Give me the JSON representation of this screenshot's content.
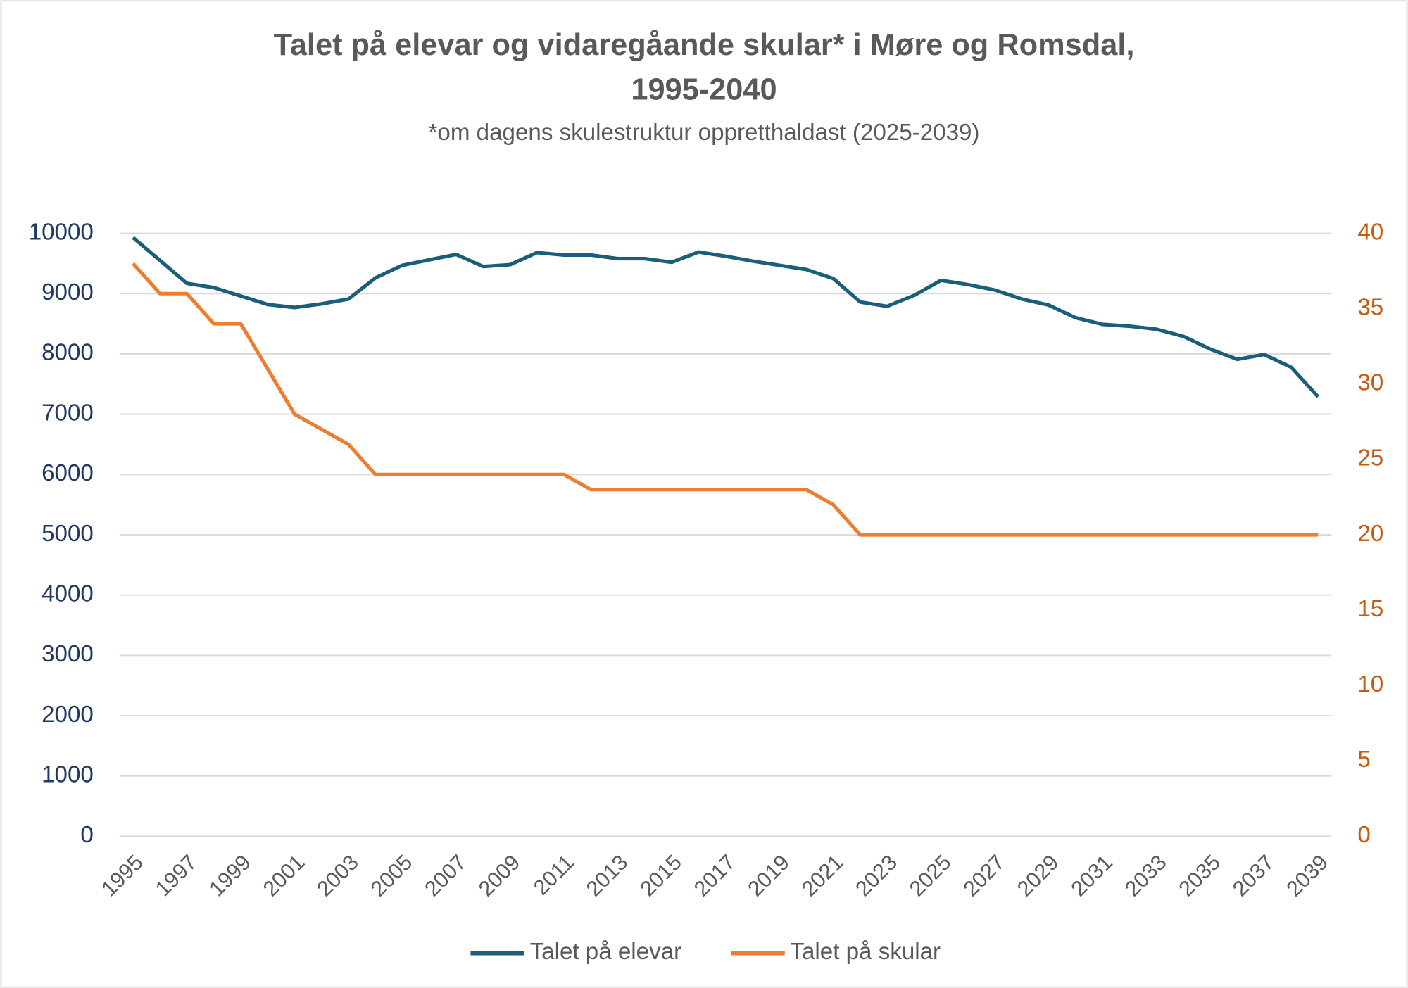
{
  "chart_data": {
    "type": "line",
    "title": [
      "Talet på elevar og vidaregåande skular* i Møre og Romsdal,",
      "1995-2040"
    ],
    "subtitle": "*om dagens skulestruktur oppretthaldast (2025-2039)",
    "categories": [
      "1995",
      null,
      "1997",
      null,
      "1999",
      null,
      "2001",
      null,
      "2003",
      null,
      "2005",
      null,
      "2007",
      null,
      "2009",
      null,
      "2011",
      null,
      "2013",
      null,
      "2015",
      null,
      "2017",
      null,
      "2019",
      null,
      "2021",
      null,
      "2023",
      null,
      "2025",
      null,
      "2027",
      null,
      "2029",
      null,
      "2031",
      null,
      "2033",
      null,
      "2035",
      null,
      "2037",
      null,
      "2039"
    ],
    "series": [
      {
        "name": "Talet på elevar",
        "color": "#1b5e7b",
        "values": [
          9930,
          9550,
          9170,
          9100,
          8960,
          8820,
          8770,
          8830,
          8910,
          9260,
          9470,
          9560,
          9650,
          9450,
          9480,
          9680,
          9640,
          9640,
          9580,
          9580,
          9520,
          9690,
          9620,
          9540,
          9470,
          9400,
          9250,
          8860,
          8790,
          8970,
          9220,
          9150,
          9060,
          8910,
          8810,
          8600,
          8490,
          8460,
          8410,
          8290,
          8080,
          7910,
          7990,
          7780,
          7290
        ]
      },
      {
        "name": "Talet på skular",
        "color": "#ed7d31",
        "axis": "y2",
        "values": [
          38,
          36,
          36,
          34,
          34,
          31,
          28,
          27,
          26,
          24,
          24,
          24,
          24,
          24,
          24,
          24,
          24,
          23,
          23,
          23,
          23,
          23,
          23,
          23,
          23,
          23,
          22,
          20,
          20,
          20,
          20,
          20,
          20,
          20,
          20,
          20,
          20,
          20,
          20,
          20,
          20,
          20,
          20,
          20,
          20
        ]
      }
    ],
    "ylim": [
      0,
      10000
    ],
    "yticks": [
      0,
      1000,
      2000,
      3000,
      4000,
      5000,
      6000,
      7000,
      8000,
      9000,
      10000
    ],
    "y2lim": [
      0,
      40
    ],
    "y2ticks": [
      0,
      5,
      10,
      15,
      20,
      25,
      30,
      35,
      40
    ],
    "ytick_color": "#1f3864",
    "y2tick_color": "#c55a11",
    "grid": true,
    "legend": "bottom"
  }
}
